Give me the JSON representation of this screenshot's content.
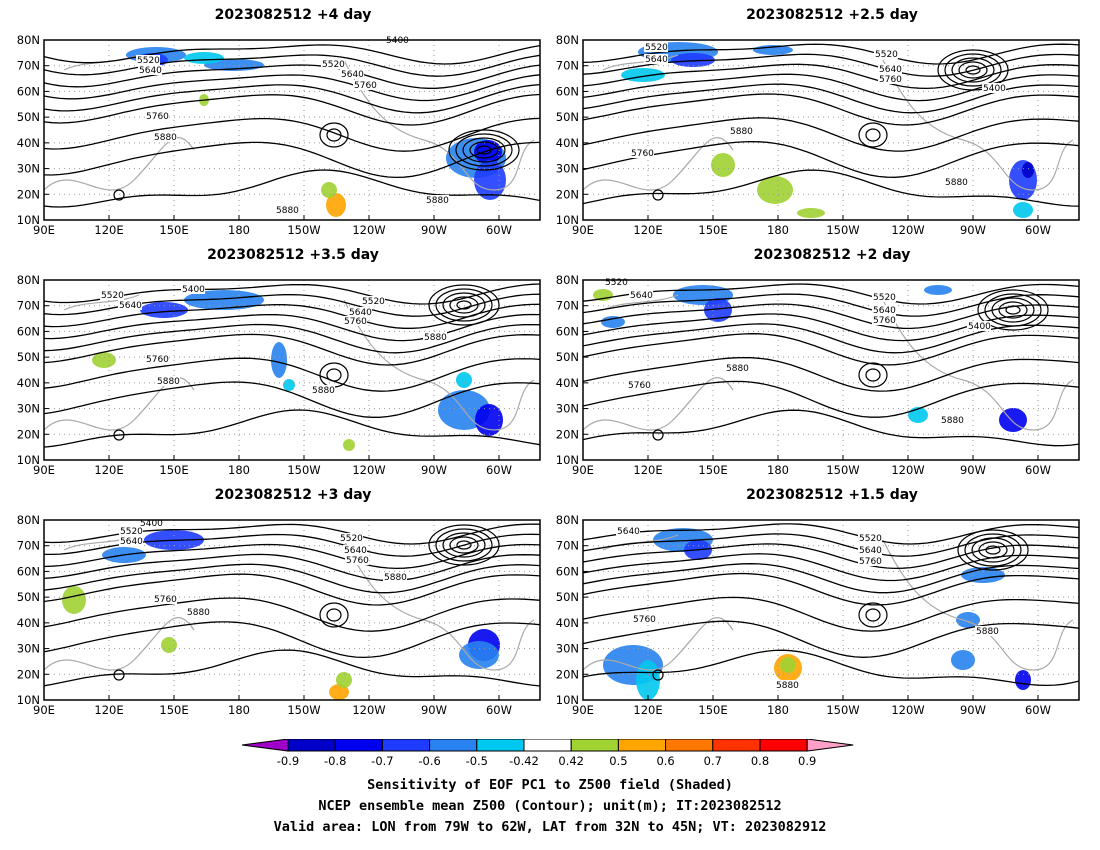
{
  "panels": [
    {
      "title": "2023082512  +4 day",
      "contour_labels": [
        "5400",
        "5520",
        "5640",
        "5520",
        "5640",
        "5760",
        "5760",
        "5880",
        "5880",
        "5880"
      ]
    },
    {
      "title": "2023082512  +2.5 day",
      "contour_labels": [
        "5520",
        "5640",
        "5520",
        "5640",
        "5760",
        "5400",
        "5880",
        "5760",
        "5880"
      ]
    },
    {
      "title": "2023082512  +3.5 day",
      "contour_labels": [
        "5400",
        "5520",
        "5640",
        "5520",
        "5640",
        "5760",
        "5760",
        "5880",
        "5880",
        "5880"
      ]
    },
    {
      "title": "2023082512  +2 day",
      "contour_labels": [
        "5520",
        "5640",
        "5520",
        "5640",
        "5760",
        "5400",
        "5760",
        "5880",
        "5880"
      ]
    },
    {
      "title": "2023082512  +3 day",
      "contour_labels": [
        "5400",
        "5520",
        "5640",
        "5520",
        "5640",
        "5760",
        "5760",
        "5880",
        "5880"
      ]
    },
    {
      "title": "2023082512  +1.5 day",
      "contour_labels": [
        "5640",
        "5520",
        "5640",
        "5760",
        "5760",
        "5880",
        "5880"
      ]
    }
  ],
  "axes": {
    "y_ticks": [
      "80N",
      "70N",
      "60N",
      "50N",
      "40N",
      "30N",
      "20N",
      "10N"
    ],
    "x_ticks": [
      "90E",
      "120E",
      "150E",
      "180",
      "150W",
      "120W",
      "90W",
      "60W"
    ]
  },
  "colorbar": {
    "labels": [
      "-0.9",
      "-0.8",
      "-0.7",
      "-0.6",
      "-0.5",
      "-0.42",
      "0.42",
      "0.5",
      "0.6",
      "0.7",
      "0.8",
      "0.9"
    ],
    "colors": [
      "#a000c8",
      "#0000c8",
      "#0000f0",
      "#1e3cff",
      "#2882f0",
      "#00c8f0",
      "#ffffff",
      "#a0d232",
      "#ffa500",
      "#ff7800",
      "#ff3200",
      "#ff0000",
      "#ffa0c8"
    ]
  },
  "caption": {
    "line1": "Sensitivity of EOF PC1 to Z500 field (Shaded)",
    "line2": "NCEP ensemble mean Z500 (Contour); unit(m); IT:2023082512",
    "line3": "Valid area: LON from 79W to 62W, LAT from 32N to 45N; VT: 2023082912"
  }
}
